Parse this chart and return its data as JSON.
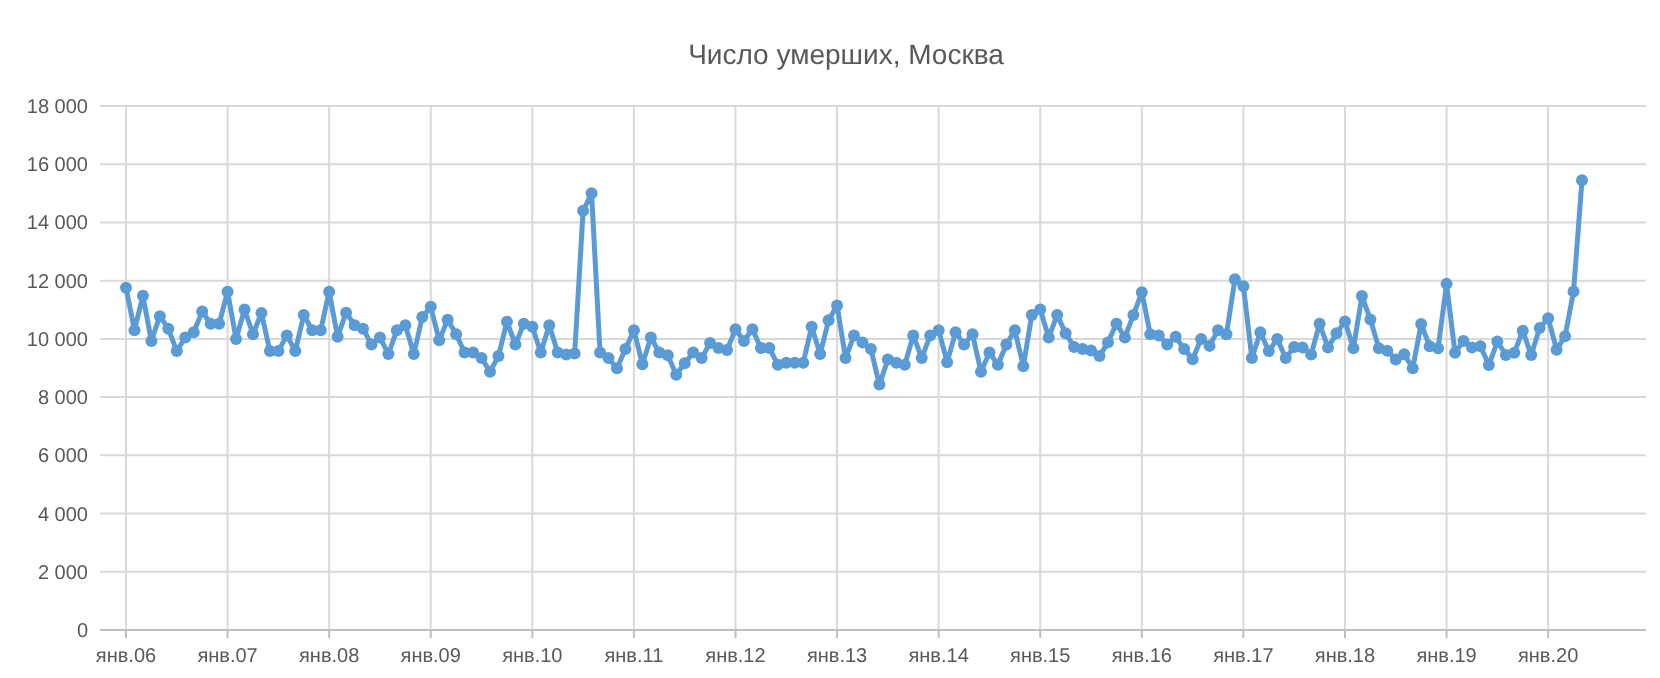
{
  "chart_data": {
    "type": "line",
    "title": "Число умерших, Москва",
    "categories": [
      "янв.06",
      null,
      null,
      null,
      null,
      null,
      null,
      null,
      null,
      null,
      null,
      null,
      "янв.07",
      null,
      null,
      null,
      null,
      null,
      null,
      null,
      null,
      null,
      null,
      null,
      "янв.08",
      null,
      null,
      null,
      null,
      null,
      null,
      null,
      null,
      null,
      null,
      null,
      "янв.09",
      null,
      null,
      null,
      null,
      null,
      null,
      null,
      null,
      null,
      null,
      null,
      "янв.10",
      null,
      null,
      null,
      null,
      null,
      null,
      null,
      null,
      null,
      null,
      null,
      "янв.11",
      null,
      null,
      null,
      null,
      null,
      null,
      null,
      null,
      null,
      null,
      null,
      "янв.12",
      null,
      null,
      null,
      null,
      null,
      null,
      null,
      null,
      null,
      null,
      null,
      "янв.13",
      null,
      null,
      null,
      null,
      null,
      null,
      null,
      null,
      null,
      null,
      null,
      "янв.14",
      null,
      null,
      null,
      null,
      null,
      null,
      null,
      null,
      null,
      null,
      null,
      "янв.15",
      null,
      null,
      null,
      null,
      null,
      null,
      null,
      null,
      null,
      null,
      null,
      "янв.16",
      null,
      null,
      null,
      null,
      null,
      null,
      null,
      null,
      null,
      null,
      null,
      "янв.17",
      null,
      null,
      null,
      null,
      null,
      null,
      null,
      null,
      null,
      null,
      null,
      "янв.18",
      null,
      null,
      null,
      null,
      null,
      null,
      null,
      null,
      null,
      null,
      null,
      "янв.19",
      null,
      null,
      null,
      null,
      null,
      null,
      null,
      null,
      null,
      null,
      null,
      "янв.20",
      null,
      null,
      null,
      null
    ],
    "series": [
      {
        "color": "#5b9bd5",
        "values": [
          11760,
          10300,
          11480,
          9930,
          10780,
          10350,
          9580,
          10050,
          10230,
          10940,
          10520,
          10520,
          11620,
          10000,
          11010,
          10160,
          10890,
          9580,
          9580,
          10120,
          9580,
          10820,
          10300,
          10300,
          11620,
          10070,
          10900,
          10470,
          10350,
          9810,
          10050,
          9480,
          10300,
          10470,
          9480,
          10750,
          11100,
          9950,
          10660,
          10160,
          9530,
          9530,
          9340,
          8870,
          9410,
          10590,
          9810,
          10520,
          10420,
          9530,
          10470,
          9530,
          9460,
          9500,
          14400,
          15000,
          9530,
          9340,
          8990,
          9650,
          10300,
          9130,
          10050,
          9530,
          9440,
          8770,
          9160,
          9530,
          9340,
          9860,
          9690,
          9620,
          10330,
          9930,
          10330,
          9690,
          9690,
          9110,
          9180,
          9180,
          9180,
          10420,
          9480,
          10640,
          11150,
          9340,
          10120,
          9880,
          9650,
          8430,
          9290,
          9180,
          9110,
          10120,
          9340,
          10120,
          10300,
          9200,
          10230,
          9810,
          10160,
          8870,
          9530,
          9110,
          9810,
          10300,
          9060,
          10820,
          11010,
          10050,
          10820,
          10190,
          9720,
          9650,
          9600,
          9410,
          9880,
          10520,
          10050,
          10820,
          11600,
          10160,
          10120,
          9810,
          10070,
          9650,
          9300,
          10000,
          9760,
          10300,
          10160,
          12050,
          11810,
          9340,
          10230,
          9580,
          10000,
          9340,
          9720,
          9700,
          9460,
          10520,
          9700,
          10190,
          10600,
          9680,
          11470,
          10670,
          9680,
          9590,
          9290,
          9470,
          8990,
          10510,
          9750,
          9680,
          11890,
          9520,
          9930,
          9700,
          9750,
          9100,
          9910,
          9450,
          9520,
          10280,
          9450,
          10370,
          10710,
          9630,
          10090,
          11630,
          15450
        ]
      }
    ],
    "ylim": [
      0,
      18000
    ],
    "yticks": [
      0,
      {
        "value": 2000,
        "label": "2 000"
      },
      {
        "value": 4000,
        "label": "4 000"
      },
      {
        "value": 6000,
        "label": "6 000"
      },
      {
        "value": 8000,
        "label": "8 000"
      },
      {
        "value": 10000,
        "label": "10 000"
      },
      {
        "value": 12000,
        "label": "12 000"
      },
      {
        "value": 14000,
        "label": "14 000"
      },
      {
        "value": 16000,
        "label": "16 000"
      },
      {
        "value": 18000,
        "label": "18 000"
      }
    ],
    "grid": true,
    "marker": "circle",
    "line_style": "solid"
  }
}
